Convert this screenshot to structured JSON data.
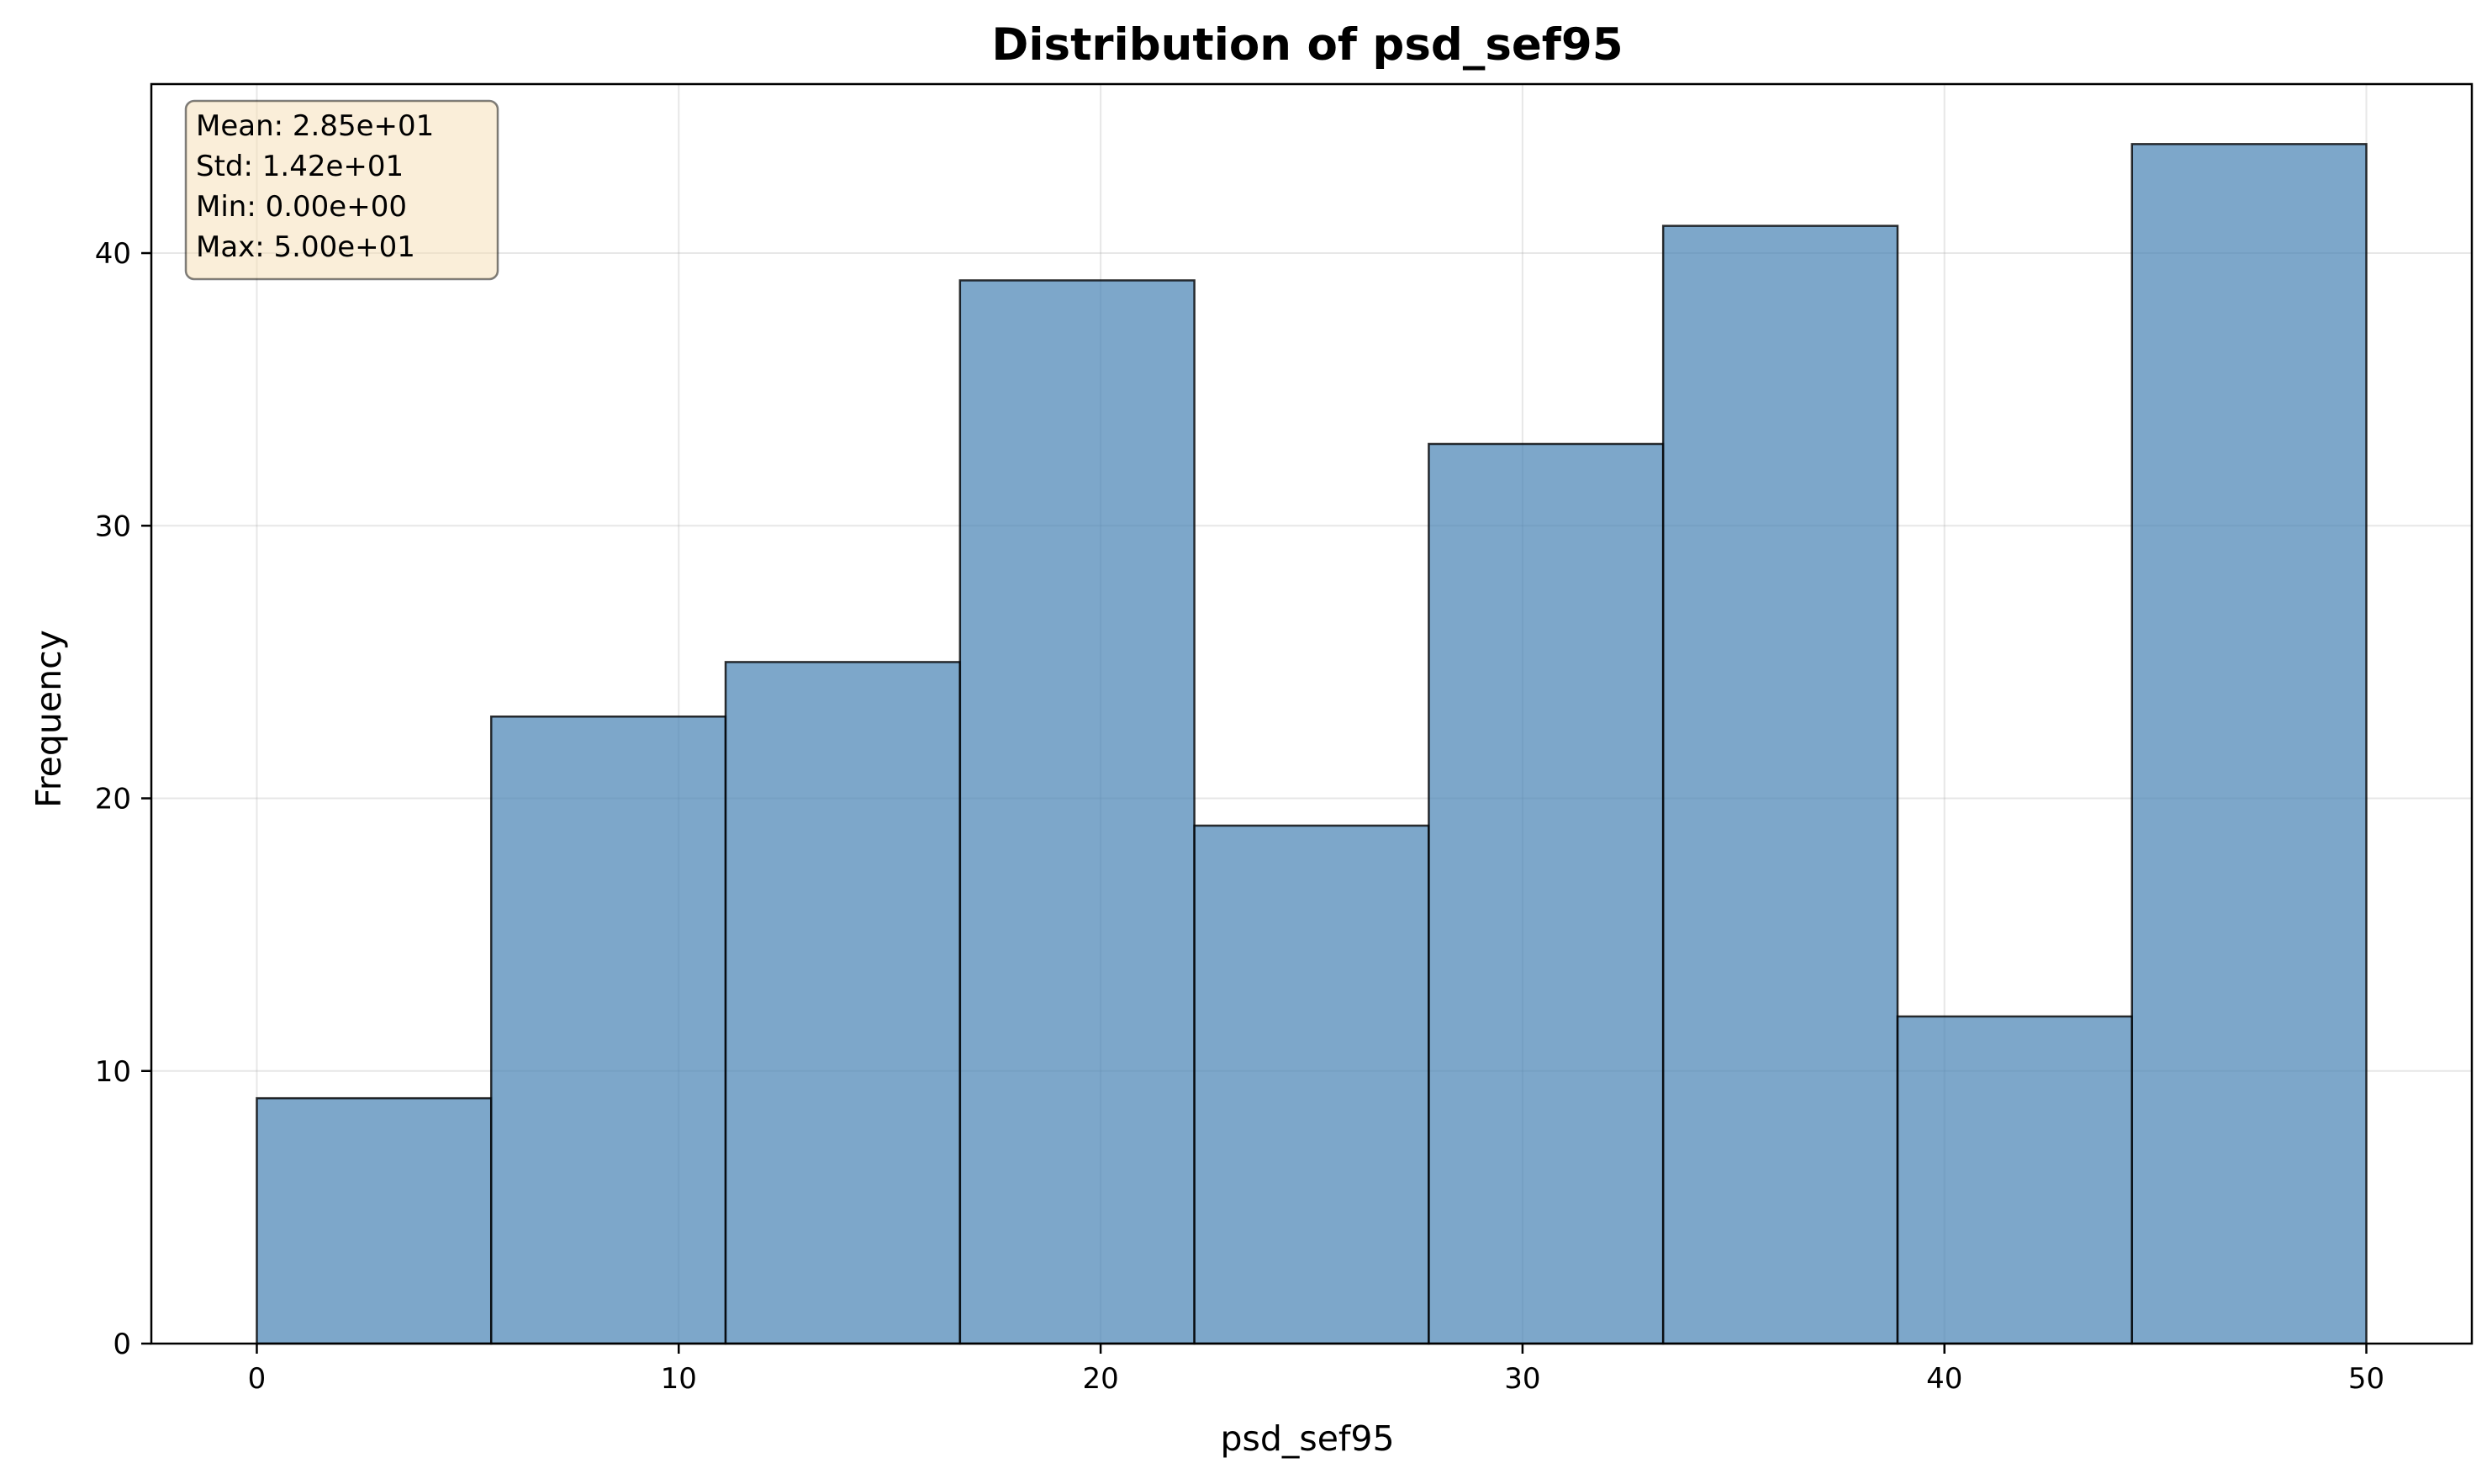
{
  "chart_data": {
    "type": "bar",
    "title": "Distribution of psd_sef95",
    "xlabel": "psd_sef95",
    "ylabel": "Frequency",
    "bin_edges": [
      0,
      5.5556,
      11.1111,
      16.6667,
      22.2222,
      27.7778,
      33.3333,
      38.8889,
      44.4444,
      50
    ],
    "values": [
      9,
      23,
      25,
      39,
      19,
      33,
      41,
      12,
      44
    ],
    "xlim": [
      -2.5,
      52.5
    ],
    "ylim": [
      0,
      46.2
    ],
    "xticks": [
      0,
      10,
      20,
      30,
      40,
      50
    ],
    "yticks": [
      0,
      10,
      20,
      30,
      40
    ],
    "grid": true,
    "bar_color": "#4682b4",
    "stats_box": {
      "placement": "top-left",
      "background": "#f5deb3",
      "lines": [
        "Mean: 2.85e+01",
        "Std: 1.42e+01",
        "Min: 0.00e+00",
        "Max: 5.00e+01"
      ]
    }
  }
}
